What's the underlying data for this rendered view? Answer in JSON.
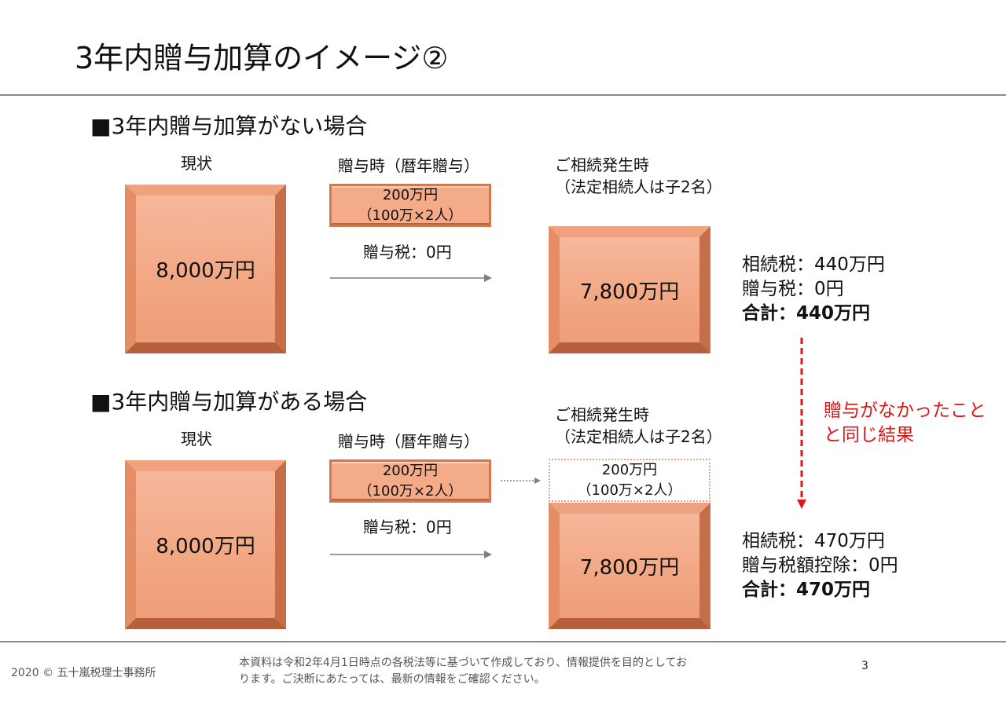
{
  "title": "3年内贈与加算のイメージ②",
  "sections": [
    {
      "heading": "■3年内贈与加算がない場合",
      "current_label": "現状",
      "current_value": "8,000万円",
      "gift_label": "贈与時（暦年贈与）",
      "gift_line1": "200万円",
      "gift_line2": "（100万×2人）",
      "gift_tax": "贈与税：0円",
      "inherit_label_line1": "ご相続発生時",
      "inherit_label_line2": "（法定相続人は子2名）",
      "inherit_value": "7,800万円",
      "tax_lines": [
        "相続税：440万円",
        "贈与税：0円",
        "合計：440万円"
      ]
    },
    {
      "heading": "■3年内贈与加算がある場合",
      "current_label": "現状",
      "current_value": "8,000万円",
      "gift_label": "贈与時（暦年贈与）",
      "gift_line1": "200万円",
      "gift_line2": "（100万×2人）",
      "gift_tax": "贈与税：0円",
      "inherit_label_line1": "ご相続発生時",
      "inherit_label_line2": "（法定相続人は子2名）",
      "added_line1": "200万円",
      "added_line2": "（100万×2人）",
      "inherit_value": "7,800万円",
      "tax_lines": [
        "相続税：470万円",
        "贈与税額控除：0円",
        "合計：470万円"
      ]
    }
  ],
  "note_line1": "贈与がなかったこと",
  "note_line2": "と同じ結果",
  "footer": {
    "copyright": "2020 © 五十嵐税理士事務所",
    "disclaimer_line1": "本資料は令和2年4月1日時点の各税法等に基づいて作成しており、情報提供を目的としてお",
    "disclaimer_line2": "ります。ご決断にあたっては、最新の情報をご確認ください。",
    "page_number": "3"
  },
  "colors": {
    "box": "#f2a783",
    "accent_red": "#e01515",
    "arrow": "#7f7f7f"
  }
}
